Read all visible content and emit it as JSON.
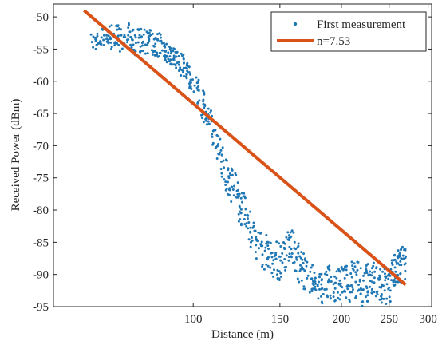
{
  "chart_data": {
    "type": "scatter",
    "title": "",
    "xlabel": "Distance (m)",
    "ylabel": "Received Power (dBm)",
    "x_scale": "log",
    "xlim": [
      52,
      305
    ],
    "ylim": [
      -95,
      -48
    ],
    "xticks": [
      100,
      150,
      200,
      250,
      300
    ],
    "xtick_labels": [
      "100",
      "150",
      "200",
      "250",
      "300"
    ],
    "yticks": [
      -50,
      -55,
      -60,
      -65,
      -70,
      -75,
      -80,
      -85,
      -90,
      -95
    ],
    "ytick_labels": [
      "-50",
      "-55",
      "-60",
      "-65",
      "-70",
      "-75",
      "-80",
      "-85",
      "-90",
      "-95"
    ],
    "grid": false,
    "legend_position": "top-right",
    "series": [
      {
        "name": "First measurement",
        "kind": "scatter",
        "color": "#1f77b4",
        "points_x": [
          62,
          64,
          66,
          68,
          70,
          72,
          74,
          76,
          78,
          80,
          82,
          84,
          86,
          88,
          90,
          92,
          94,
          96,
          98,
          100,
          103,
          106,
          109,
          112,
          115,
          118,
          121,
          124,
          127,
          130,
          134,
          138,
          142,
          146,
          150,
          154,
          158,
          162,
          166,
          170,
          175,
          180,
          185,
          190,
          195,
          200,
          205,
          210,
          215,
          220,
          225,
          230,
          235,
          240,
          245,
          250,
          255,
          258,
          262,
          265
        ],
        "points_y": [
          -54,
          -53.5,
          -53,
          -53,
          -53,
          -54,
          -53,
          -54,
          -53.5,
          -54,
          -54,
          -54.5,
          -54,
          -55.5,
          -56,
          -56.5,
          -57,
          -58,
          -59,
          -60.5,
          -62,
          -65,
          -67,
          -70,
          -73,
          -75,
          -76.5,
          -79,
          -80,
          -82.5,
          -84.5,
          -86,
          -87,
          -87.5,
          -88,
          -86.5,
          -85.5,
          -87.5,
          -89,
          -90,
          -91,
          -92,
          -92,
          -91.5,
          -92.5,
          -91,
          -91.5,
          -91,
          -90.5,
          -92,
          -91.5,
          -90.5,
          -91,
          -92,
          -91.5,
          -92,
          -90,
          -89.5,
          -89,
          -88.5
        ],
        "points_spread": [
          1.5,
          1.5,
          2,
          2,
          2,
          2,
          2,
          2,
          2,
          2,
          2,
          2,
          1.5,
          1.5,
          1.5,
          1.5,
          2,
          2,
          2,
          2.5,
          2.5,
          2.5,
          2.5,
          2.5,
          3,
          3,
          3,
          3,
          2.5,
          3,
          3,
          3,
          3,
          3,
          3,
          3,
          3,
          3,
          3,
          2.5,
          2.5,
          2.5,
          3,
          3,
          3,
          3,
          3,
          3,
          3,
          3,
          3,
          3,
          3,
          3,
          3,
          3,
          3,
          3,
          3,
          3
        ]
      },
      {
        "name": "n=7.53",
        "kind": "line",
        "color": "#d95319",
        "x": [
          60,
          270
        ],
        "y": [
          -49,
          -91.6
        ]
      }
    ]
  }
}
